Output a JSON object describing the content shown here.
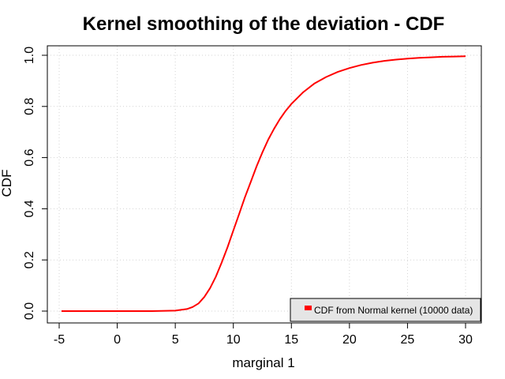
{
  "chart_data": {
    "type": "line",
    "title": "Kernel smoothing of the deviation - CDF",
    "xlabel": "marginal 1",
    "ylabel": "CDF",
    "xlim": [
      -5,
      30
    ],
    "ylim": [
      0,
      1
    ],
    "x_ticks": [
      "-5",
      "0",
      "5",
      "10",
      "15",
      "20",
      "25",
      "30"
    ],
    "y_ticks": [
      "0.0",
      "0.2",
      "0.4",
      "0.6",
      "0.8",
      "1.0"
    ],
    "grid": true,
    "legend_position": "bottom-right",
    "series": [
      {
        "name": "CDF from Normal kernel (10000 data)",
        "color": "#ff0000",
        "x": [
          -4.8,
          0,
          3,
          5,
          6,
          6.5,
          7,
          7.5,
          8,
          8.5,
          9,
          9.5,
          10,
          10.5,
          11,
          11.5,
          12,
          12.5,
          13,
          13.5,
          14,
          14.5,
          15,
          16,
          17,
          18,
          19,
          20,
          21,
          22,
          23,
          24,
          25,
          26,
          27,
          28,
          29,
          30
        ],
        "y": [
          0,
          0,
          0,
          0.002,
          0.008,
          0.016,
          0.03,
          0.055,
          0.09,
          0.135,
          0.19,
          0.25,
          0.315,
          0.38,
          0.445,
          0.505,
          0.565,
          0.62,
          0.67,
          0.712,
          0.75,
          0.782,
          0.81,
          0.855,
          0.89,
          0.915,
          0.935,
          0.95,
          0.962,
          0.971,
          0.978,
          0.983,
          0.987,
          0.99,
          0.992,
          0.994,
          0.995,
          0.996
        ]
      }
    ]
  }
}
